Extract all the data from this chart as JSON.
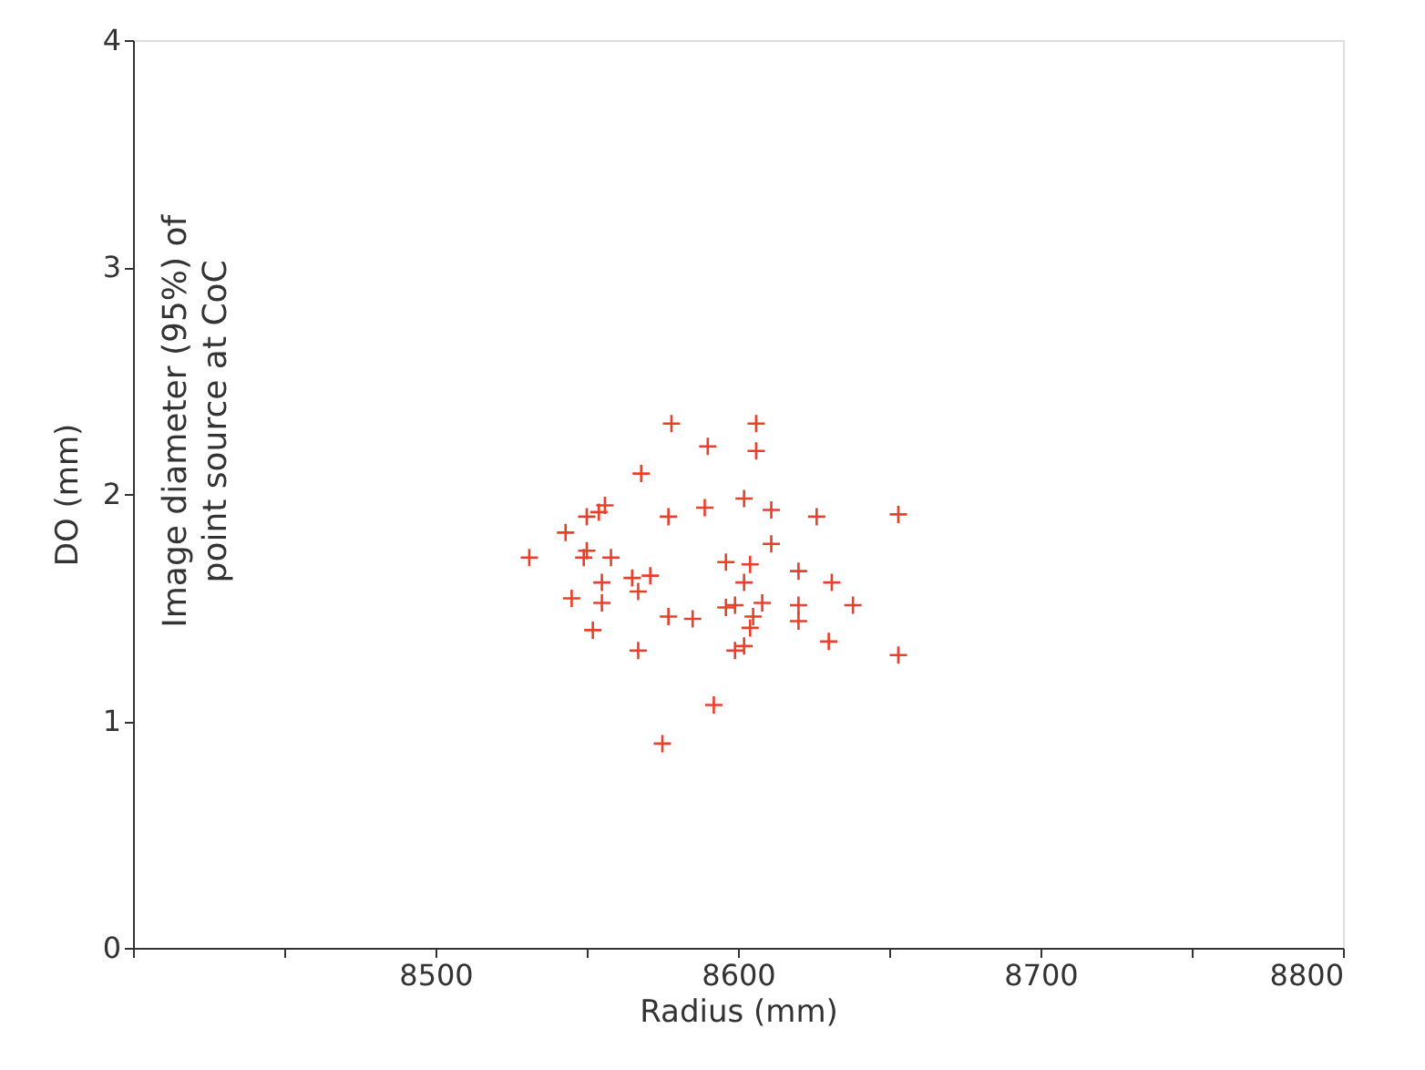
{
  "chart_data": {
    "type": "scatter",
    "xlabel": "Radius (mm)",
    "ylabel": "DO (mm)",
    "annotations": [
      "Image diameter (95%) of\npoint source at CoC"
    ],
    "xlim": [
      8400,
      8800
    ],
    "xticks": [
      {
        "value": 8400,
        "label": null
      },
      {
        "value": 8450,
        "label": null
      },
      8500,
      {
        "value": 8550,
        "label": null
      },
      8600,
      {
        "value": 8650,
        "label": null
      },
      8700,
      {
        "value": 8750,
        "label": null
      },
      8800
    ],
    "ylim": [
      0,
      4
    ],
    "yticks": [
      0,
      1,
      2,
      3,
      4
    ],
    "grid": false,
    "marker": "cross",
    "series": [
      {
        "color": "#e8402a",
        "x": [
          8578,
          8606,
          8590,
          8606,
          8568,
          8602,
          8589,
          8556,
          8554,
          8550,
          8577,
          8611,
          8626,
          8653,
          8543,
          8611,
          8531,
          8550,
          8549,
          8558,
          8596,
          8604,
          8620,
          8555,
          8565,
          8571,
          8567,
          8602,
          8631,
          8545,
          8555,
          8596,
          8599,
          8608,
          8620,
          8638,
          8577,
          8585,
          8605,
          8620,
          8552,
          8604,
          8630,
          8567,
          8599,
          8602,
          8653,
          8592,
          8575
        ],
        "values": [
          2.31,
          2.31,
          2.21,
          2.19,
          2.09,
          1.98,
          1.94,
          1.95,
          1.92,
          1.9,
          1.9,
          1.93,
          1.9,
          1.91,
          1.83,
          1.78,
          1.72,
          1.75,
          1.72,
          1.72,
          1.7,
          1.69,
          1.66,
          1.61,
          1.63,
          1.64,
          1.57,
          1.61,
          1.61,
          1.54,
          1.52,
          1.5,
          1.51,
          1.52,
          1.51,
          1.51,
          1.46,
          1.45,
          1.46,
          1.44,
          1.4,
          1.41,
          1.35,
          1.31,
          1.31,
          1.33,
          1.29,
          1.07,
          0.9
        ]
      }
    ]
  }
}
